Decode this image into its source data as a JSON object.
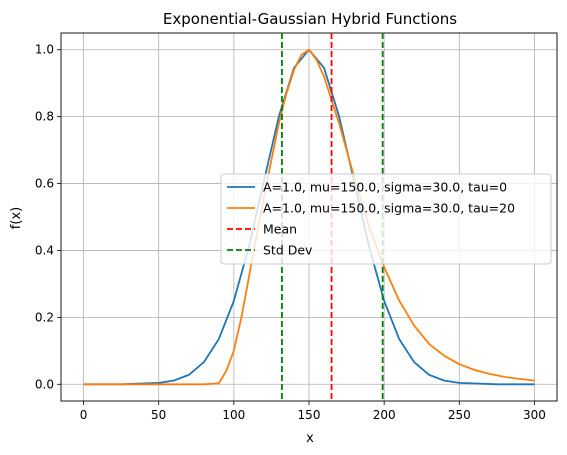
{
  "chart_data": {
    "type": "line",
    "title": "Exponential-Gaussian Hybrid Functions",
    "xlabel": "x",
    "ylabel": "f(x)",
    "xlim": [
      -15,
      315
    ],
    "ylim": [
      -0.05,
      1.05
    ],
    "xticks": [
      0,
      50,
      100,
      150,
      200,
      250,
      300
    ],
    "yticks": [
      0.0,
      0.2,
      0.4,
      0.6,
      0.8,
      1.0
    ],
    "xtick_labels": [
      "0",
      "50",
      "100",
      "150",
      "200",
      "250",
      "300"
    ],
    "ytick_labels": [
      "0.0",
      "0.2",
      "0.4",
      "0.6",
      "0.8",
      "1.0"
    ],
    "grid": true,
    "legend_position": "center-right",
    "series": [
      {
        "name": "A=1.0, mu=150.0, sigma=30.0, tau=0",
        "color": "#1f77b4",
        "style": "solid",
        "x": [
          0,
          25,
          50,
          60,
          70,
          80,
          90,
          100,
          110,
          120,
          130,
          140,
          150,
          160,
          170,
          180,
          190,
          200,
          210,
          220,
          230,
          240,
          250,
          275,
          300
        ],
        "y": [
          0.0,
          0.0,
          0.004,
          0.011,
          0.028,
          0.066,
          0.135,
          0.249,
          0.411,
          0.607,
          0.801,
          0.946,
          1.0,
          0.946,
          0.801,
          0.607,
          0.411,
          0.249,
          0.135,
          0.066,
          0.028,
          0.011,
          0.004,
          0.0,
          0.0
        ]
      },
      {
        "name": "A=1.0, mu=150.0, sigma=30.0, tau=20",
        "color": "#ff7f0e",
        "style": "solid",
        "x": [
          0,
          50,
          80,
          90,
          95,
          100,
          105,
          110,
          115,
          120,
          125,
          130,
          135,
          140,
          145,
          150,
          155,
          160,
          170,
          180,
          190,
          200,
          210,
          220,
          230,
          240,
          250,
          260,
          270,
          280,
          290,
          300
        ],
        "y": [
          0.0,
          0.0,
          0.0,
          0.003,
          0.04,
          0.1,
          0.2,
          0.32,
          0.44,
          0.56,
          0.67,
          0.78,
          0.87,
          0.94,
          0.985,
          1.0,
          0.97,
          0.92,
          0.78,
          0.62,
          0.47,
          0.35,
          0.25,
          0.175,
          0.12,
          0.085,
          0.06,
          0.043,
          0.031,
          0.022,
          0.016,
          0.011
        ]
      }
    ],
    "vlines": [
      {
        "name": "Mean",
        "x": 165,
        "color": "#ff0000",
        "style": "dashed"
      },
      {
        "name": "Std Dev",
        "x": 132,
        "color": "#008000",
        "style": "dashed"
      },
      {
        "name": "",
        "x": 199,
        "color": "#008000",
        "style": "dashed"
      }
    ]
  }
}
